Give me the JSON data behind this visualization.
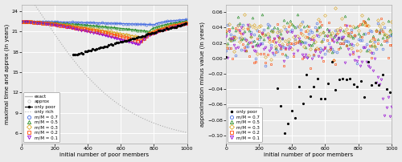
{
  "left_ylabel": "maximal time and approx (in years)",
  "right_ylabel": "approximation minus value (in years)",
  "xlabel": "initial number of poor members",
  "left_ylim": [
    4.5,
    25
  ],
  "left_yticks": [
    6,
    9,
    12,
    15,
    18,
    21,
    24
  ],
  "right_ylim": [
    -0.11,
    0.07
  ],
  "right_yticks": [
    -0.1,
    -0.08,
    -0.06,
    -0.04,
    -0.02,
    0,
    0.02,
    0.04,
    0.06
  ],
  "xlim": [
    0,
    1000
  ],
  "xticks": [
    0,
    200,
    400,
    600,
    800,
    1000
  ],
  "colors": {
    "m07": "#4169e1",
    "m05": "#228B22",
    "m03": "#DAA520",
    "m02": "#FF4500",
    "m01": "#9400D3",
    "only_poor": "#000000",
    "only_rich": "#aaaaaa",
    "exact": "#bbbbbb",
    "approx": "#bbbbbb"
  },
  "bg_color": "#ebebeb"
}
